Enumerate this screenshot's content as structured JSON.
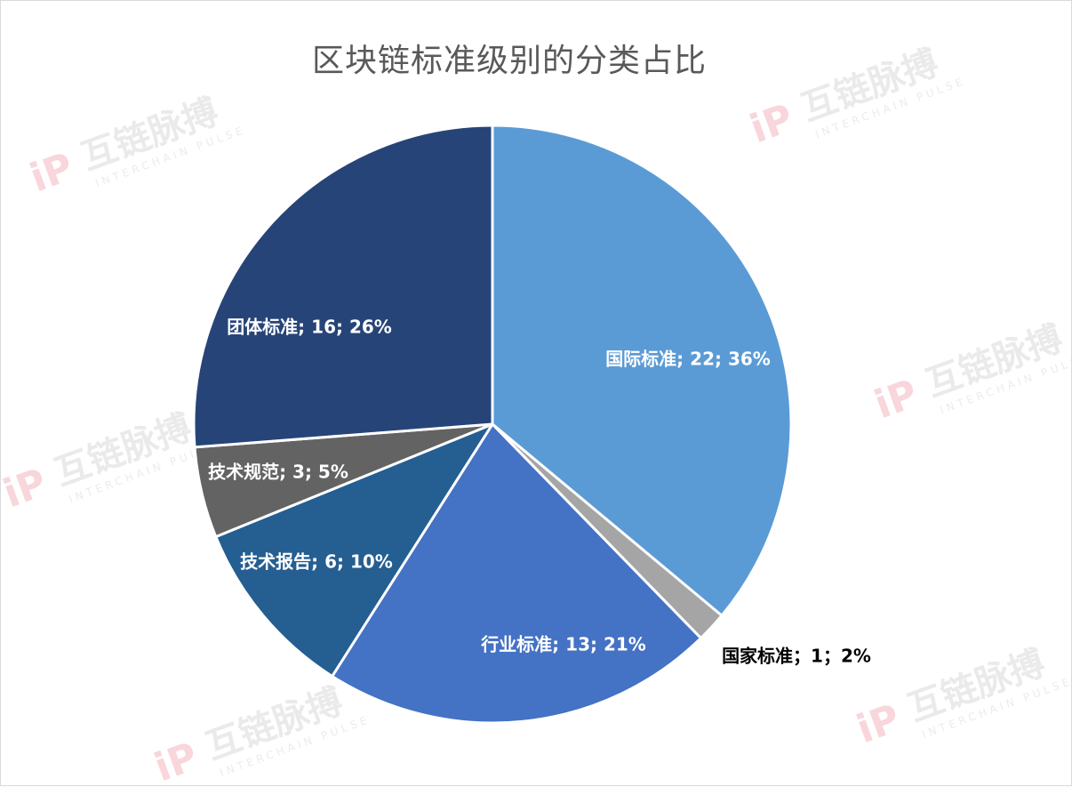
{
  "title": "区块链标准级别的分类占比",
  "watermark": {
    "text": "互链脉搏",
    "sub": "INTERCHAIN PULSE"
  },
  "chart_data": {
    "type": "pie",
    "title": "区块链标准级别的分类占比",
    "slices": [
      {
        "label": "国际标准; 22; 36%",
        "category": "国际标准",
        "value": 22,
        "percent": 36,
        "color": "#5B9BD5"
      },
      {
        "label": "国家标准；1；2%",
        "category": "国家标准",
        "value": 1,
        "percent": 2,
        "color": "#A5A5A5"
      },
      {
        "label": "行业标准; 13; 21%",
        "category": "行业标准",
        "value": 13,
        "percent": 21,
        "color": "#4472C4"
      },
      {
        "label": "技术报告; 6; 10%",
        "category": "技术报告",
        "value": 6,
        "percent": 10,
        "color": "#255E91"
      },
      {
        "label": "技术规范; 3; 5%",
        "category": "技术规范",
        "value": 3,
        "percent": 5,
        "color": "#636363"
      },
      {
        "label": "团体标准; 16; 26%",
        "category": "团体标准",
        "value": 16,
        "percent": 26,
        "color": "#264478"
      }
    ],
    "start_angle": "12 o'clock",
    "direction": "clockwise",
    "legend": "none",
    "data_labels": "category; value; percent"
  }
}
